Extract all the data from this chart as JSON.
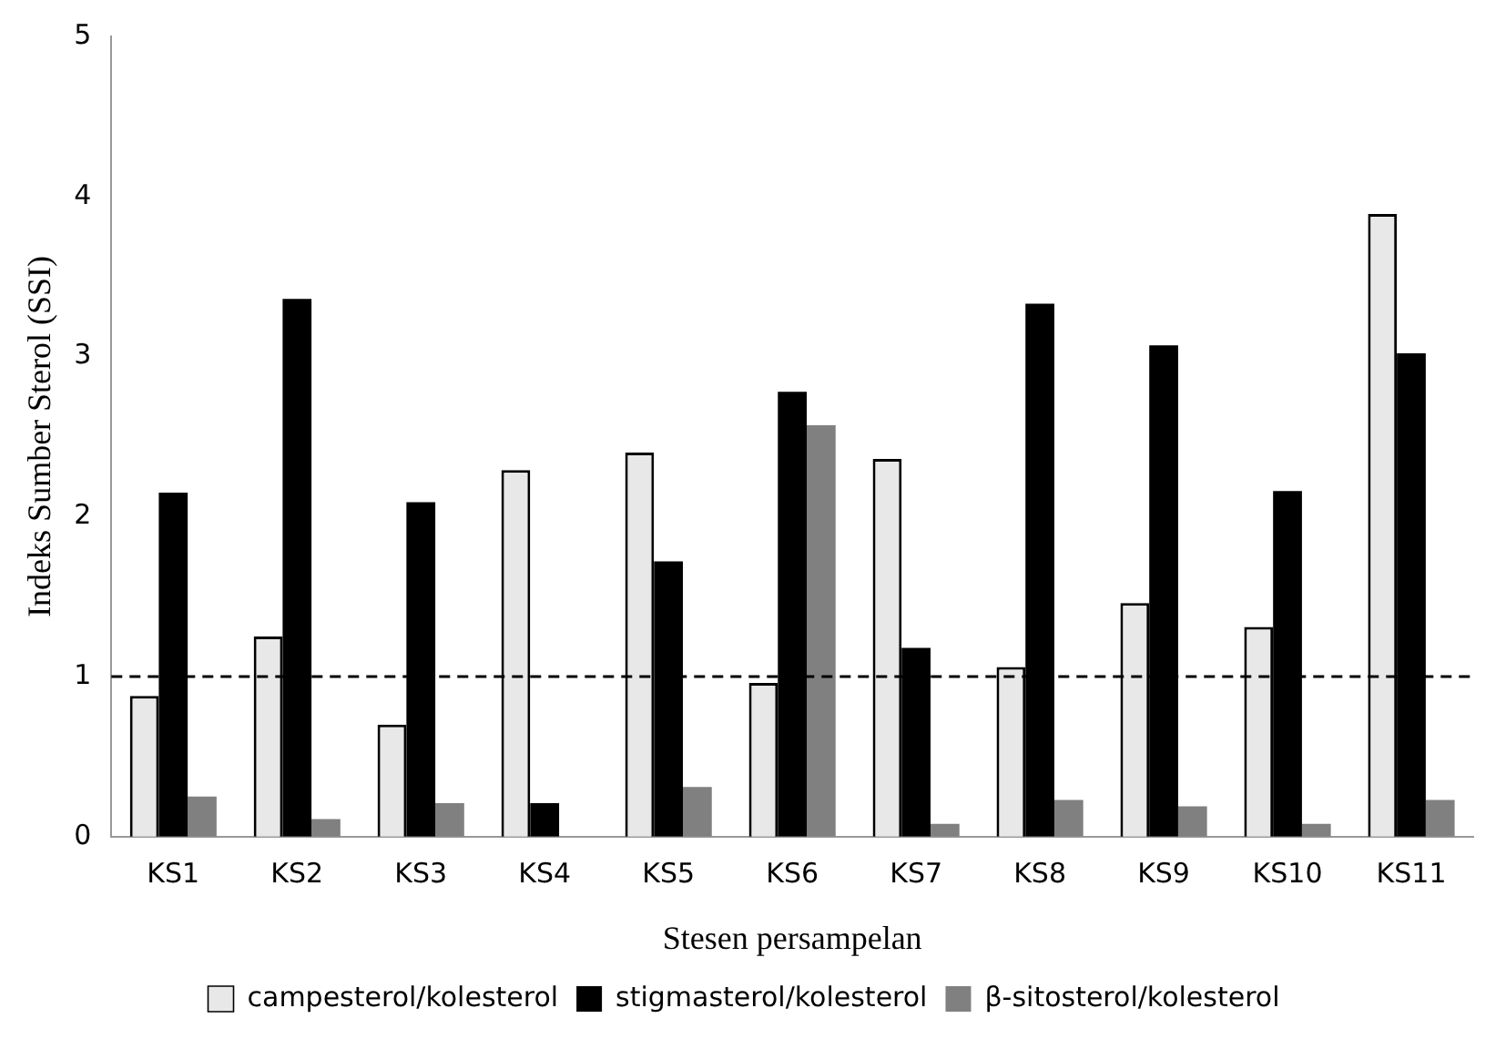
{
  "chart_data": {
    "type": "bar",
    "xlabel": "Stesen persampelan",
    "ylabel": "Indeks Sumber Sterol (SSI)",
    "categories": [
      "KS1",
      "KS2",
      "KS3",
      "KS4",
      "KS5",
      "KS6",
      "KS7",
      "KS8",
      "KS9",
      "KS10",
      "KS11"
    ],
    "series": [
      {
        "name": "campesterol/kolesterol",
        "color": "#e8e8e8",
        "values": [
          0.88,
          1.25,
          0.7,
          2.29,
          2.4,
          0.96,
          2.36,
          1.06,
          1.46,
          1.31,
          3.89
        ]
      },
      {
        "name": "stigmasterol/kolesterol",
        "color": "#000000",
        "values": [
          2.15,
          3.36,
          2.09,
          0.21,
          1.72,
          2.78,
          1.18,
          3.33,
          3.07,
          2.16,
          3.02
        ]
      },
      {
        "name": "β-sitosterol/kolesterol",
        "color": "#808080",
        "values": [
          0.25,
          0.11,
          0.21,
          0,
          0.31,
          2.57,
          0.08,
          0.23,
          0.19,
          0.08,
          0.23
        ]
      }
    ],
    "ylim": [
      0,
      5
    ],
    "yticks": [
      0,
      1,
      2,
      3,
      4,
      5
    ],
    "grid": false,
    "legend": "bottom",
    "ref_lines": [
      {
        "axis": "y",
        "value": 1,
        "color": "#000000",
        "line_style": "dashed"
      }
    ]
  }
}
